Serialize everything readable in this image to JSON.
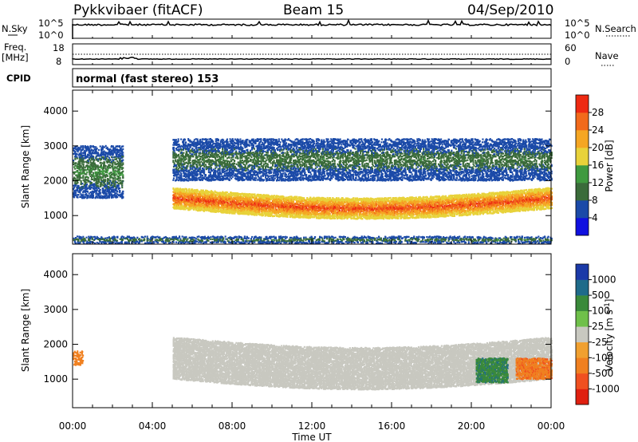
{
  "header": {
    "station": "Pykkvibaer (fitACF)",
    "beam": "Beam 15",
    "date": "04/Sep/2010"
  },
  "strips": {
    "nsky_label": "N.Sky",
    "nsky_ticks": [
      "10^5",
      "10^0"
    ],
    "nsearch_label": "N.Search",
    "nsearch_ticks": [
      "10^5",
      "10^0"
    ],
    "freq_label": "Freq.",
    "freq_unit": "[MHz]",
    "freq_ticks": [
      "18",
      "8"
    ],
    "nave_label": "Nave",
    "nave_ticks": [
      "60",
      "0"
    ],
    "cpid_label": "CPID",
    "cpid_text": "normal (fast stereo) 153"
  },
  "x_axis": {
    "label": "Time UT",
    "ticks": [
      "00:00",
      "04:00",
      "08:00",
      "12:00",
      "16:00",
      "20:00",
      "00:00"
    ]
  },
  "colors": {
    "power": [
      "#1010e0",
      "#1b4aa8",
      "#3a6b3a",
      "#3f9a3f",
      "#e8d23a",
      "#f5a623",
      "#f26a1b",
      "#ee2a12"
    ],
    "velocity": [
      "#1b3aa8",
      "#1f6b8a",
      "#3a8a3a",
      "#6fc04a",
      "#c8c8c0",
      "#f0a030",
      "#f08020",
      "#f05020",
      "#e02010"
    ],
    "ground_scatter": "#c8c8c0"
  },
  "chart_data": [
    {
      "type": "heatmap",
      "title": "",
      "xlabel": "Time UT",
      "ylabel": "Slant Range [km]",
      "xlim": [
        "00:00",
        "24:00"
      ],
      "ylim": [
        180,
        4600
      ],
      "y_ticks": [
        1000,
        2000,
        3000,
        4000
      ],
      "colorbar": {
        "label": "Power [dB]",
        "ticks": [
          4,
          8,
          12,
          16,
          20,
          24,
          28
        ],
        "range": [
          0,
          32
        ]
      },
      "features": [
        {
          "name": "main echo band",
          "time_start": 5.0,
          "time_end": 24.0,
          "slant_range_km": [
            1200,
            1800
          ],
          "power_db": [
            16,
            30
          ]
        },
        {
          "name": "upper echo band",
          "time_start": 5.0,
          "time_end": 24.0,
          "slant_range_km": [
            2000,
            3200
          ],
          "power_db": [
            4,
            12
          ]
        },
        {
          "name": "early echoes",
          "time_start": 0.0,
          "time_end": 2.5,
          "slant_range_km": [
            1500,
            3000
          ],
          "power_db": [
            4,
            14
          ]
        },
        {
          "name": "near-range clutter",
          "time_start": 0.0,
          "time_end": 24.0,
          "slant_range_km": [
            200,
            400
          ],
          "power_db": [
            4,
            12
          ]
        }
      ]
    },
    {
      "type": "heatmap",
      "title": "",
      "xlabel": "Time UT",
      "ylabel": "Slant Range [km]",
      "xlim": [
        "00:00",
        "24:00"
      ],
      "ylim": [
        180,
        4600
      ],
      "y_ticks": [
        1000,
        2000,
        3000,
        4000
      ],
      "colorbar": {
        "label": "Velocity [m s^-1]",
        "ticks": [
          1000,
          500,
          100,
          25,
          -25,
          -100,
          -500,
          -1000
        ],
        "range": [
          -1200,
          1200
        ]
      },
      "features": [
        {
          "name": "ground scatter band",
          "time_start": 5.0,
          "time_end": 24.0,
          "slant_range_km": [
            1000,
            2200
          ],
          "velocity": [
            -25,
            25
          ]
        },
        {
          "name": "positive velocity patch",
          "time_start": 20.2,
          "time_end": 21.8,
          "slant_range_km": [
            900,
            1600
          ],
          "velocity": [
            100,
            600
          ]
        },
        {
          "name": "negative velocity patch",
          "time_start": 22.2,
          "time_end": 24.0,
          "slant_range_km": [
            1000,
            1600
          ],
          "velocity": [
            -600,
            -100
          ]
        },
        {
          "name": "early negative patch",
          "time_start": 0.0,
          "time_end": 0.5,
          "slant_range_km": [
            1400,
            1800
          ],
          "velocity": [
            -300,
            -100
          ]
        }
      ]
    }
  ]
}
